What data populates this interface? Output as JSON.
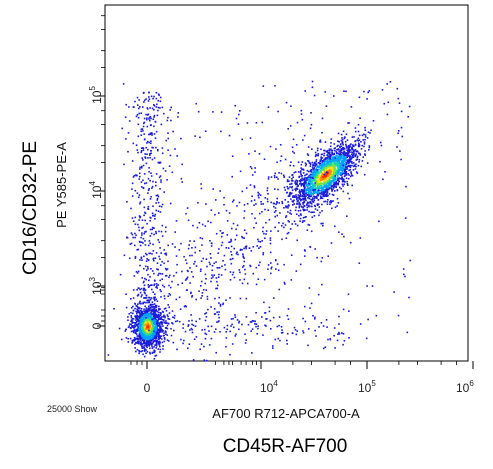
{
  "chart_data": {
    "type": "scatter",
    "style": "flow-cytometry density dot plot (biexponential axes)",
    "x_axis": {
      "channel_label": "AF700 R712-APCA700-A",
      "marker_label": "CD45R-AF700",
      "scale": "biexponential",
      "range": [
        -1000,
        1000000
      ],
      "ticks": [
        {
          "value": 0,
          "base": "0",
          "exp": ""
        },
        {
          "value": 10000,
          "base": "10",
          "exp": "4"
        },
        {
          "value": 100000,
          "base": "10",
          "exp": "5"
        },
        {
          "value": 1000000,
          "base": "10",
          "exp": "6"
        }
      ]
    },
    "y_axis": {
      "channel_label": "PE Y585-PE-A",
      "marker_label": "CD16/CD32-PE",
      "scale": "biexponential",
      "range": [
        -1000,
        1000000
      ],
      "ticks": [
        {
          "value": 0,
          "base": "0",
          "exp": ""
        },
        {
          "value": 1000,
          "base": "10",
          "exp": "3"
        },
        {
          "value": 10000,
          "base": "10",
          "exp": "4"
        },
        {
          "value": 100000,
          "base": "10",
          "exp": "5"
        }
      ]
    },
    "events_note": "25000 Show",
    "populations": [
      {
        "x_center": 0,
        "y_center": 0,
        "relative_size": "large"
      },
      {
        "x_center": 40000,
        "y_center": 15000,
        "relative_size": "large"
      },
      {
        "x_center": 0,
        "y_center": 10000,
        "relative_size": "sparse vertical streak"
      }
    ],
    "density_colors": [
      "#1b1bd8",
      "#00a2ff",
      "#12d6b0",
      "#7fe03a",
      "#ffe31a",
      "#ff8a00",
      "#ff2a00"
    ],
    "grid": false,
    "legend": "none"
  }
}
